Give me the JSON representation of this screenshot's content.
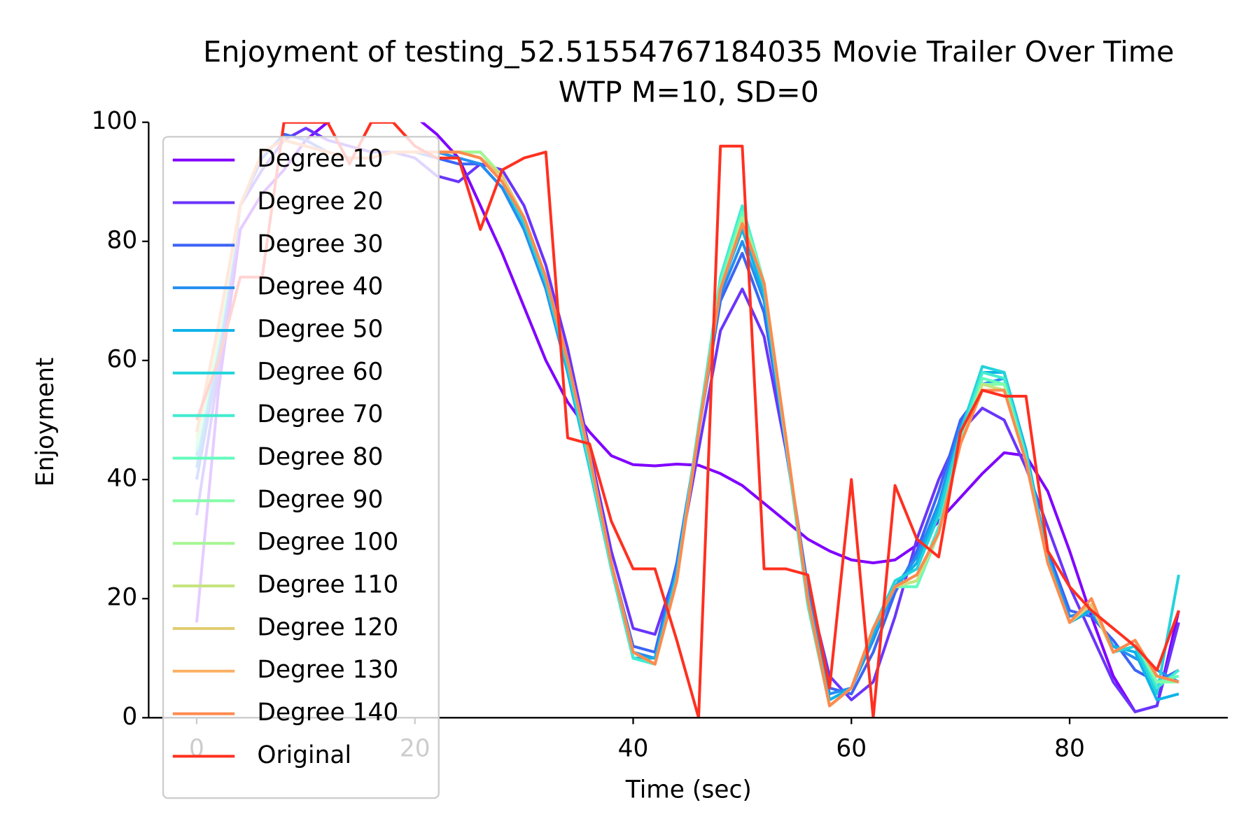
{
  "chart_data": {
    "type": "line",
    "title": "Enjoyment of testing_52.51554767184035 Movie Trailer Over Time",
    "subtitle": "WTP M=10, SD=0",
    "x_label": "Time (sec)",
    "y_label": "Enjoyment",
    "xlim": [
      -4.4,
      94.5
    ],
    "xticks": [
      0,
      20,
      40,
      60,
      80
    ],
    "ylim": [
      0,
      100
    ],
    "yticks": [
      0,
      20,
      40,
      60,
      80,
      100
    ],
    "legend": "upper left",
    "grid": false,
    "x": [
      0,
      2,
      4,
      6,
      8,
      10,
      12,
      14,
      16,
      18,
      20,
      22,
      24,
      26,
      28,
      30,
      32,
      34,
      36,
      38,
      40,
      42,
      44,
      46,
      48,
      50,
      52,
      54,
      56,
      58,
      60,
      62,
      64,
      66,
      68,
      70,
      72,
      74,
      76,
      78,
      80,
      82,
      84,
      86,
      88,
      90
    ],
    "series": [
      {
        "name": "Degree 10",
        "color": "#8000ff",
        "values": [
          16,
          55,
          82,
          88,
          92,
          97,
          100,
          102,
          104,
          103,
          101,
          98,
          94,
          86,
          78,
          69,
          60,
          53,
          48,
          44,
          42.5,
          42.3,
          42.6,
          42.4,
          41,
          39,
          36,
          33,
          30,
          28,
          26.5,
          26,
          26.5,
          29,
          33,
          37,
          41,
          44.5,
          44,
          38,
          28,
          17,
          7,
          1,
          2,
          18
        ]
      },
      {
        "name": "Degree 20",
        "color": "#6a35fb",
        "values": [
          34,
          58,
          86,
          92,
          97,
          99,
          97,
          96,
          95,
          95,
          94,
          91,
          90,
          93,
          92,
          86,
          76,
          62,
          45,
          28,
          15,
          14,
          25,
          45,
          65,
          72,
          64,
          45,
          22,
          7,
          3,
          6,
          17,
          30,
          40,
          48,
          52,
          50,
          42,
          32,
          22,
          14,
          6,
          1,
          2,
          16
        ]
      },
      {
        "name": "Degree 30",
        "color": "#3c64f5",
        "values": [
          40,
          60,
          86,
          94,
          98,
          97,
          95,
          94,
          94,
          95,
          95,
          94,
          93,
          93,
          89,
          82,
          72,
          58,
          42,
          26,
          12,
          11,
          26,
          48,
          70,
          78,
          68,
          46,
          22,
          5,
          4,
          11,
          21,
          28,
          38,
          50,
          55,
          55,
          43,
          28,
          18,
          17,
          13,
          8,
          6,
          8
        ]
      },
      {
        "name": "Degree 40",
        "color": "#258ef0",
        "values": [
          42,
          62,
          86,
          95,
          97,
          96,
          95,
          94,
          94,
          95,
          95,
          95,
          94,
          93,
          89,
          82,
          72,
          58,
          42,
          26,
          11,
          10,
          25,
          48,
          71,
          80,
          70,
          46,
          21,
          4,
          5,
          13,
          22,
          27,
          36,
          49,
          56,
          57,
          44,
          27,
          17,
          18,
          12,
          10,
          8,
          6
        ]
      },
      {
        "name": "Degree 50",
        "color": "#0fb3e8",
        "values": [
          44,
          63,
          86,
          95,
          97,
          96,
          95,
          94,
          94,
          95,
          95,
          95,
          95,
          94,
          90,
          83,
          73,
          58,
          42,
          25,
          10,
          10,
          24,
          48,
          72,
          82,
          71,
          46,
          20,
          3,
          5,
          14,
          22,
          26,
          35,
          48,
          58,
          58,
          45,
          27,
          16,
          18,
          12,
          11,
          3,
          4
        ]
      },
      {
        "name": "Degree 60",
        "color": "#23d3dc",
        "values": [
          45,
          63,
          86,
          95,
          97,
          96,
          95,
          94,
          94,
          95,
          95,
          95,
          95,
          94,
          90,
          83,
          73,
          59,
          42,
          25,
          10,
          9,
          24,
          49,
          73,
          84,
          72,
          46,
          19,
          2,
          5,
          15,
          23,
          25,
          34,
          48,
          59,
          58,
          44,
          26,
          16,
          19,
          11,
          12,
          4,
          24
        ]
      },
      {
        "name": "Degree 70",
        "color": "#42ecd0",
        "values": [
          46,
          64,
          86,
          95,
          97,
          96,
          95,
          94,
          94,
          95,
          95,
          95,
          95,
          95,
          91,
          84,
          74,
          60,
          43,
          25,
          10,
          9,
          23,
          49,
          74,
          86,
          73,
          46,
          19,
          2,
          5,
          15,
          22,
          23,
          32,
          47,
          58,
          57,
          44,
          26,
          16,
          19,
          11,
          13,
          5,
          8
        ]
      },
      {
        "name": "Degree 80",
        "color": "#62fbbd",
        "values": [
          45,
          64,
          86,
          95,
          97,
          96,
          95,
          94,
          94,
          95,
          95,
          95,
          95,
          95,
          91,
          84,
          74,
          60,
          44,
          26,
          11,
          9,
          23,
          48,
          73,
          85,
          73,
          47,
          20,
          2,
          5,
          15,
          22,
          22,
          31,
          46,
          57,
          56,
          43,
          26,
          16,
          19,
          11,
          13,
          6,
          7
        ]
      },
      {
        "name": "Degree 90",
        "color": "#84fca8",
        "values": [
          46,
          64,
          86,
          95,
          97,
          96,
          95,
          94,
          94,
          95,
          95,
          95,
          95,
          95,
          91,
          84,
          74,
          60,
          44,
          26,
          11,
          9,
          23,
          48,
          72,
          84,
          73,
          47,
          20,
          2,
          5,
          15,
          22,
          23,
          31,
          46,
          56,
          56,
          43,
          26,
          16,
          19,
          11,
          13,
          6,
          6
        ]
      },
      {
        "name": "Degree 100",
        "color": "#a5f692",
        "values": [
          47,
          65,
          86,
          95,
          97,
          96,
          95,
          94,
          94,
          95,
          95,
          95,
          95,
          95,
          91,
          84,
          74,
          60,
          44,
          26,
          11,
          9,
          23,
          48,
          72,
          84,
          73,
          47,
          20,
          2,
          5,
          15,
          22,
          23,
          31,
          46,
          56,
          55,
          43,
          26,
          16,
          19,
          11,
          13,
          7,
          6
        ]
      },
      {
        "name": "Degree 110",
        "color": "#c6e47f",
        "values": [
          47,
          65,
          86,
          95,
          97,
          96,
          95,
          94,
          94,
          95,
          95,
          95,
          95,
          94,
          91,
          84,
          74,
          60,
          44,
          26,
          11,
          9,
          23,
          48,
          72,
          83,
          73,
          47,
          20,
          2,
          5,
          15,
          22,
          23,
          31,
          46,
          56,
          55,
          43,
          26,
          16,
          19,
          11,
          13,
          7,
          6
        ]
      },
      {
        "name": "Degree 120",
        "color": "#e0cc70",
        "values": [
          48,
          65,
          86,
          95,
          97,
          96,
          95,
          94,
          94,
          95,
          95,
          95,
          95,
          94,
          91,
          84,
          74,
          60,
          44,
          26,
          11,
          9,
          23,
          48,
          72,
          83,
          73,
          47,
          20,
          2,
          5,
          15,
          22,
          24,
          31,
          46,
          55,
          55,
          43,
          26,
          16,
          19,
          11,
          13,
          7,
          6
        ]
      },
      {
        "name": "Degree 130",
        "color": "#fbb063",
        "values": [
          48,
          66,
          86,
          95,
          97,
          96,
          95,
          94,
          94,
          95,
          95,
          95,
          95,
          94,
          90,
          84,
          74,
          60,
          44,
          26,
          11,
          9,
          23,
          48,
          72,
          83,
          73,
          47,
          20,
          2,
          5,
          15,
          22,
          24,
          31,
          46,
          55,
          55,
          43,
          26,
          16,
          20,
          11,
          13,
          7,
          6
        ]
      },
      {
        "name": "Degree 140",
        "color": "#ff8a4f",
        "values": [
          48,
          66,
          86,
          95,
          97,
          96,
          95,
          94,
          94,
          95,
          95,
          95,
          95,
          94,
          90,
          84,
          74,
          60,
          44,
          26,
          11,
          9,
          23,
          48,
          72,
          83,
          73,
          47,
          20,
          2,
          5,
          15,
          22,
          24,
          31,
          46,
          55,
          55,
          43,
          26,
          16,
          20,
          11,
          13,
          7,
          6
        ]
      },
      {
        "name": "Original",
        "color": "#ff3020",
        "values": [
          50,
          60,
          74,
          74,
          100,
          100,
          100,
          93,
          100,
          100,
          96,
          94,
          94,
          82,
          92,
          94,
          95,
          47,
          46,
          33,
          25,
          25,
          13,
          0,
          96,
          96,
          25,
          25,
          24,
          5,
          40,
          0,
          39,
          30,
          27,
          48,
          55,
          54,
          54,
          28,
          22,
          18,
          15,
          12,
          8,
          18
        ]
      }
    ]
  }
}
